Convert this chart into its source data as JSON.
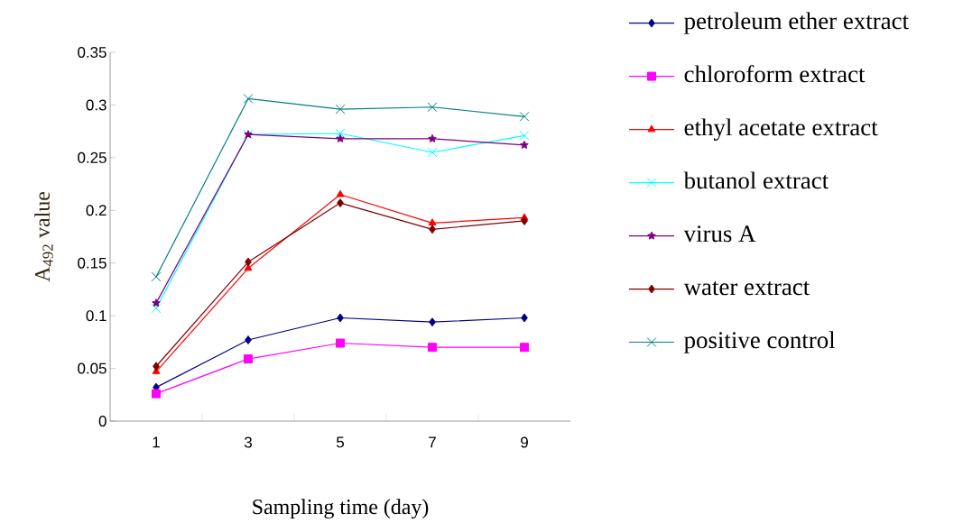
{
  "chart_data": {
    "type": "line",
    "xlabel": "Sampling time (day)",
    "ylabel": "A$_{492}$ value",
    "categories": [
      "1",
      "3",
      "5",
      "7",
      "9"
    ],
    "ylim": [
      0,
      0.35
    ],
    "yticks": [
      0,
      0.05,
      0.1,
      0.15,
      0.2,
      0.25,
      0.3,
      0.35
    ],
    "legend": "right",
    "grid": false,
    "series": [
      {
        "name": "petroleum ether extract",
        "color": "#000080",
        "marker": "diamond",
        "values": [
          0.032,
          0.077,
          0.098,
          0.094,
          0.098
        ]
      },
      {
        "name": "chloroform extract",
        "color": "#ff00ff",
        "marker": "square",
        "values": [
          0.026,
          0.059,
          0.074,
          0.07,
          0.07
        ]
      },
      {
        "name": "ethyl acetate extract",
        "color": "#ff0000",
        "marker": "triangle",
        "values": [
          0.047,
          0.145,
          0.215,
          0.188,
          0.193
        ]
      },
      {
        "name": "butanol extract",
        "color": "#00ffff",
        "marker": "cross",
        "values": [
          0.107,
          0.272,
          0.273,
          0.255,
          0.271
        ]
      },
      {
        "name": "virus A",
        "color": "#800080",
        "marker": "star",
        "values": [
          0.112,
          0.272,
          0.268,
          0.268,
          0.262
        ]
      },
      {
        "name": "water extract",
        "color": "#800000",
        "marker": "diamond",
        "values": [
          0.052,
          0.151,
          0.207,
          0.182,
          0.19
        ]
      },
      {
        "name": "positive control",
        "color": "#008080",
        "marker": "cross",
        "values": [
          0.137,
          0.306,
          0.296,
          0.298,
          0.289
        ]
      }
    ]
  }
}
